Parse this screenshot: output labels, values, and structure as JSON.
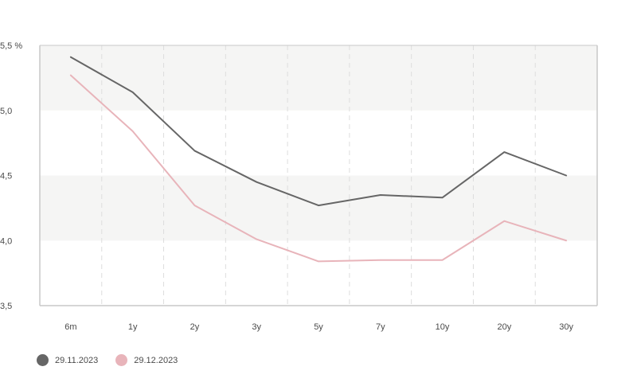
{
  "chart_data": {
    "type": "line",
    "categories": [
      "6m",
      "1y",
      "2y",
      "3y",
      "5y",
      "7y",
      "10y",
      "20y",
      "30y"
    ],
    "series": [
      {
        "name": "29.11.2023",
        "color": "#666666",
        "values": [
          5.41,
          5.14,
          4.69,
          4.45,
          4.27,
          4.35,
          4.33,
          4.68,
          4.5
        ]
      },
      {
        "name": "29.12.2023",
        "color": "#e8b4ba",
        "values": [
          5.27,
          4.84,
          4.27,
          4.01,
          3.84,
          3.85,
          3.85,
          4.15,
          4.0
        ]
      }
    ],
    "ylim": [
      3.5,
      5.5
    ],
    "yticks": [
      "3,5",
      "4,0",
      "4,5",
      "5,0",
      "5,5 %"
    ],
    "legend_position": "bottom-left",
    "band_color": "#f5f5f4",
    "axis_color": "#c8c8c8"
  }
}
